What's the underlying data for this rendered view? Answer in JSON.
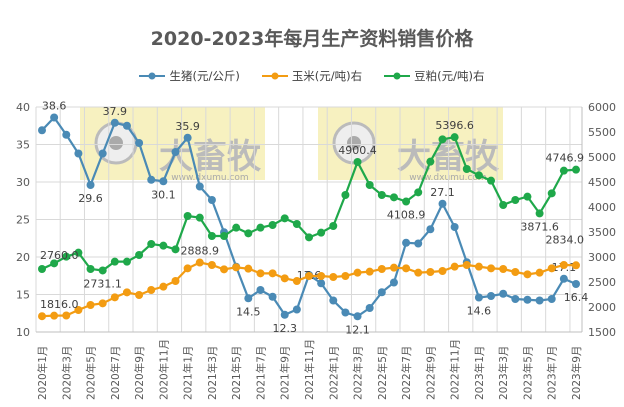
{
  "chart_data": {
    "type": "line",
    "title": "2020-2023年每月生产资料销售价格",
    "categories": [
      "2020年1月",
      "2020年2月",
      "2020年3月",
      "2020年4月",
      "2020年5月",
      "2020年6月",
      "2020年7月",
      "2020年8月",
      "2020年9月",
      "2020年10月",
      "2020年11月",
      "2020年12月",
      "2021年1月",
      "2021年2月",
      "2021年3月",
      "2021年4月",
      "2021年5月",
      "2021年6月",
      "2021年7月",
      "2021年8月",
      "2021年9月",
      "2021年10月",
      "2021年11月",
      "2021年12月",
      "2022年1月",
      "2022年2月",
      "2022年3月",
      "2022年4月",
      "2022年5月",
      "2022年6月",
      "2022年7月",
      "2022年8月",
      "2022年9月",
      "2022年10月",
      "2022年11月",
      "2022年12月",
      "2023年1月",
      "2023年2月",
      "2023年3月",
      "2023年4月",
      "2023年5月",
      "2023年6月",
      "2023年7月",
      "2023年8月",
      "2023年9月"
    ],
    "y_left": {
      "min": 10,
      "max": 40,
      "ticks": [
        10,
        15,
        20,
        25,
        30,
        35,
        40
      ]
    },
    "y_right": {
      "min": 1500,
      "max": 6000,
      "ticks": [
        1500,
        2000,
        2500,
        3000,
        3500,
        4000,
        4500,
        5000,
        5500,
        6000
      ]
    },
    "grid": true,
    "legend": "top",
    "series": [
      {
        "name": "生猪(元/公斤)",
        "axis": "left",
        "color": "#4a8ab5",
        "values": [
          36.9,
          38.6,
          36.3,
          33.8,
          29.6,
          33.8,
          37.9,
          37.5,
          35.2,
          30.3,
          30.1,
          34.0,
          35.9,
          29.4,
          27.6,
          23.3,
          18.7,
          14.5,
          15.6,
          14.7,
          12.3,
          13.0,
          17.6,
          16.5,
          14.2,
          12.6,
          12.1,
          13.2,
          15.3,
          16.6,
          21.9,
          21.8,
          23.7,
          27.1,
          24.0,
          19.3,
          14.6,
          14.8,
          15.1,
          14.4,
          14.3,
          14.2,
          14.4,
          17.1,
          16.4
        ],
        "labels": {
          "1": "38.6",
          "4": "29.6",
          "6": "37.9",
          "10": "30.1",
          "12": "35.9",
          "17": "14.5",
          "20": "12.3",
          "22": "17.6",
          "26": "12.1",
          "33": "27.1",
          "36": "14.6",
          "43": "17.1",
          "44": "16.4"
        }
      },
      {
        "name": "玉米(元/吨)右",
        "axis": "right",
        "color": "#f39c12",
        "values": [
          1816.0,
          1827,
          1830,
          1940,
          2040,
          2073,
          2193,
          2293,
          2240,
          2340,
          2407,
          2520,
          2773,
          2888.9,
          2840,
          2753,
          2793,
          2767,
          2673,
          2673,
          2573,
          2520,
          2620,
          2620,
          2600,
          2620,
          2687,
          2707,
          2760,
          2787,
          2773,
          2687,
          2700,
          2720,
          2807,
          2840,
          2807,
          2773,
          2760,
          2700,
          2653,
          2687,
          2773,
          2840,
          2834.0
        ],
        "labels": {
          "0": "1816.0",
          "13": "2888.9",
          "44": "2834.0"
        }
      },
      {
        "name": "豆粕(元/吨)右",
        "axis": "right",
        "color": "#1fa84a",
        "values": [
          2760.0,
          2873,
          3007,
          3087,
          2760,
          2731.1,
          2907,
          2907,
          3040,
          3260,
          3227,
          3153,
          3820,
          3787,
          3420,
          3420,
          3587,
          3473,
          3587,
          3640,
          3773,
          3660,
          3393,
          3487,
          3620,
          4240,
          4900.4,
          4440,
          4240,
          4193,
          4108.9,
          4293,
          4907,
          5353,
          5396.6,
          4760,
          4633,
          4527,
          4040,
          4140,
          4207,
          3871.6,
          4273,
          4727,
          4746.9
        ],
        "labels": {
          "0": "2760.0",
          "5": "2731.1",
          "26": "4900.4",
          "30": "4108.9",
          "34": "5396.6",
          "41": "3871.6",
          "44": "4746.9"
        }
      }
    ],
    "watermark": {
      "text": "大畜牧",
      "url_text": "www.dxumu.com"
    }
  }
}
